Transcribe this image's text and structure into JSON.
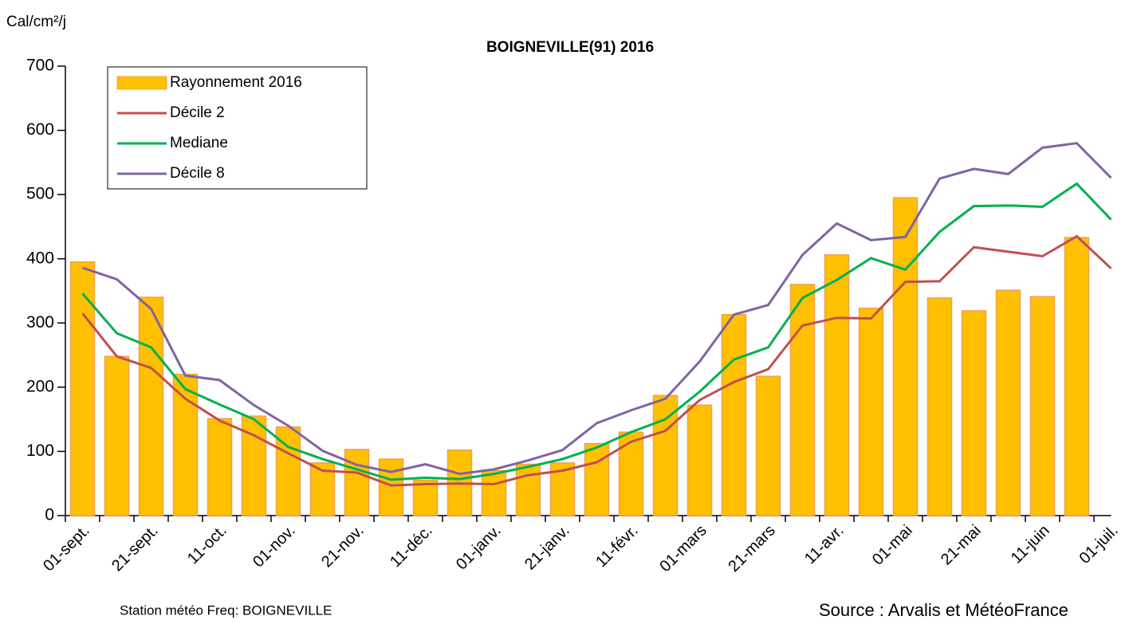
{
  "chart_data": {
    "type": "bar_line",
    "title": "BOIGNEVILLE(91) 2016",
    "y_label": "Cal/cm²/j",
    "footer_left": "Station météo Freq: BOIGNEVILLE",
    "footer_right": "Source : Arvalis et MétéoFrance",
    "categories": [
      "01-sept.",
      null,
      "21-sept.",
      null,
      "11-oct.",
      null,
      "01-nov.",
      null,
      "21-nov.",
      null,
      "11-déc.",
      null,
      "01-janv.",
      null,
      "21-janv.",
      null,
      "11-févr.",
      null,
      "01-mars",
      null,
      "21-mars",
      null,
      "11-avr.",
      null,
      "01-mai",
      null,
      "21-mai",
      null,
      "11-juin",
      null,
      "01-juil."
    ],
    "series": [
      {
        "name": "Rayonnement 2016",
        "kind": "bar",
        "color": "#FFC000",
        "values": [
          395,
          248,
          340,
          220,
          151,
          155,
          138,
          82,
          103,
          88,
          55,
          102,
          70,
          80,
          82,
          112,
          130,
          187,
          172,
          313,
          217,
          360,
          406,
          323,
          495,
          339,
          319,
          351,
          341,
          433,
          null
        ]
      },
      {
        "name": "Décile 2",
        "kind": "line",
        "color": "#C0504D",
        "values": [
          315,
          248,
          230,
          182,
          148,
          125,
          97,
          70,
          67,
          47,
          49,
          50,
          49,
          63,
          70,
          83,
          115,
          132,
          180,
          208,
          228,
          296,
          308,
          307,
          364,
          365,
          418,
          411,
          404,
          435,
          385
        ]
      },
      {
        "name": "Mediane",
        "kind": "line",
        "color": "#00B050",
        "values": [
          346,
          284,
          262,
          197,
          173,
          150,
          107,
          88,
          72,
          56,
          59,
          57,
          65,
          76,
          88,
          106,
          130,
          150,
          193,
          243,
          262,
          339,
          367,
          401,
          383,
          442,
          482,
          483,
          481,
          517,
          461
        ]
      },
      {
        "name": "Décile 8",
        "kind": "line",
        "color": "#8064A2",
        "values": [
          386,
          368,
          322,
          218,
          211,
          172,
          140,
          101,
          79,
          68,
          80,
          65,
          72,
          86,
          102,
          144,
          164,
          182,
          240,
          313,
          328,
          406,
          455,
          429,
          434,
          525,
          540,
          532,
          573,
          580,
          526
        ]
      }
    ],
    "ylim": [
      0,
      700
    ],
    "yticks": [
      0,
      100,
      200,
      300,
      400,
      500,
      600,
      700
    ],
    "grid": false,
    "legend": "upper left"
  }
}
